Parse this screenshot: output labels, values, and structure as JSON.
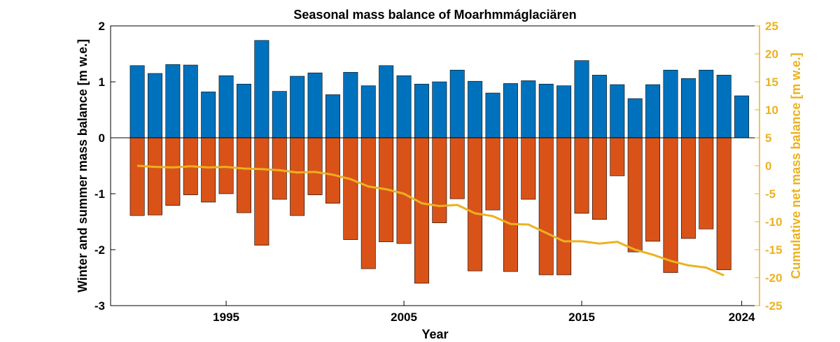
{
  "chart_data": {
    "type": "bar",
    "title": "Seasonal mass balance of Moarhmmáglaciären",
    "xlabel": "Year",
    "ylabel": "Winter and summer mass balance [m w.e.]",
    "y2label": "Cumulative net mass balance [m w.e.]",
    "xlim": [
      1988.5,
      2025
    ],
    "ylim": [
      -3,
      2
    ],
    "y2lim": [
      -25,
      25
    ],
    "xticks": [
      1995,
      2005,
      2015,
      2024
    ],
    "yticks": [
      -3,
      -2,
      -1,
      0,
      1,
      2
    ],
    "y2ticks": [
      -25,
      -20,
      -15,
      -10,
      -5,
      0,
      5,
      10,
      15,
      20,
      25
    ],
    "grid": false,
    "colors": {
      "winter": "#0072BD",
      "summer": "#D95319",
      "cumulative": "#EDB120",
      "axis": "#000000"
    },
    "years": [
      1990,
      1991,
      1992,
      1993,
      1994,
      1995,
      1996,
      1997,
      1998,
      1999,
      2000,
      2001,
      2002,
      2003,
      2004,
      2005,
      2006,
      2007,
      2008,
      2009,
      2010,
      2011,
      2012,
      2013,
      2014,
      2015,
      2016,
      2017,
      2018,
      2019,
      2020,
      2021,
      2022,
      2023,
      2024
    ],
    "series": [
      {
        "name": "Winter balance",
        "axis": "left",
        "kind": "bar",
        "values": [
          1.29,
          1.15,
          1.31,
          1.3,
          0.82,
          1.11,
          0.96,
          1.74,
          0.83,
          1.1,
          1.16,
          0.77,
          1.17,
          0.93,
          1.29,
          1.11,
          0.96,
          1.0,
          1.21,
          1.01,
          0.8,
          0.97,
          1.02,
          0.96,
          0.93,
          1.38,
          1.12,
          0.95,
          0.7,
          0.95,
          1.21,
          1.06,
          1.21,
          1.12,
          0.75
        ]
      },
      {
        "name": "Summer balance",
        "axis": "left",
        "kind": "bar",
        "values": [
          -1.39,
          -1.38,
          -1.21,
          -1.02,
          -1.15,
          -1.0,
          -1.34,
          -1.92,
          -1.1,
          -1.39,
          -1.02,
          -1.17,
          -1.82,
          -2.34,
          -1.86,
          -1.89,
          -2.6,
          -1.52,
          -1.09,
          -2.38,
          -1.29,
          -2.39,
          -1.1,
          -2.45,
          -2.45,
          -1.35,
          -1.46,
          -0.68,
          -2.04,
          -1.85,
          -2.41,
          -1.8,
          -1.63,
          -2.36,
          null
        ]
      },
      {
        "name": "Cumulative net mass balance",
        "axis": "right",
        "kind": "line",
        "values": [
          0.0,
          -0.2,
          -0.3,
          -0.1,
          -0.3,
          -0.2,
          -0.5,
          -0.6,
          -0.8,
          -1.2,
          -1.1,
          -1.6,
          -2.4,
          -3.7,
          -4.2,
          -5.0,
          -6.7,
          -7.2,
          -7.0,
          -8.5,
          -9.0,
          -10.4,
          -10.5,
          -12.0,
          -13.5,
          -13.5,
          -13.9,
          -13.6,
          -15.0,
          -15.9,
          -17.0,
          -17.8,
          -18.2,
          -19.6,
          null
        ]
      }
    ]
  }
}
